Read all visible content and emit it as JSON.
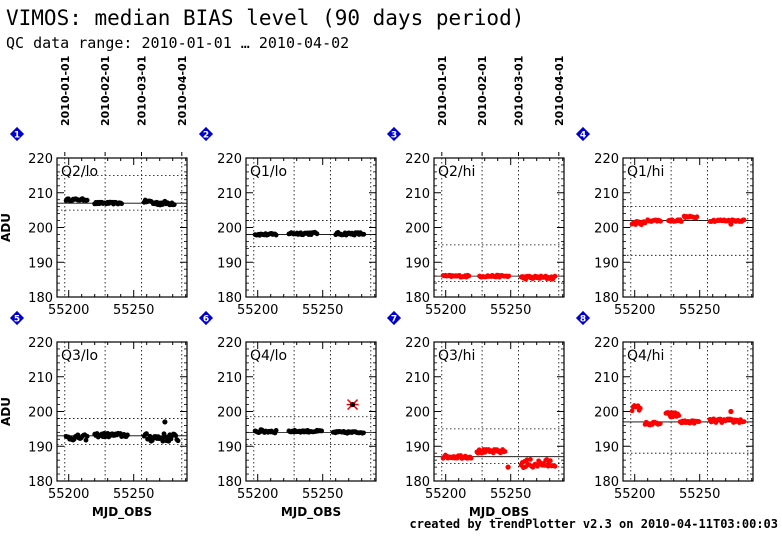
{
  "title": "VIMOS: median BIAS level (90 days period)",
  "subtitle": "QC data range: 2010-01-01 … 2010-04-02",
  "footer": "created by trendPlotter v2.3 on 2010-04-11T03:00:03",
  "colors": {
    "black_series": "#000000",
    "red_series": "#ff0000",
    "badge": "#0000cc"
  },
  "date_ticks": [
    "2010-01-01",
    "2010-02-01",
    "2010-03-01",
    "2010-04-01"
  ],
  "chart_data": [
    {
      "type": "scatter",
      "badge": "1",
      "label": "Q2/lo",
      "color": "black",
      "xlim": [
        55191,
        55291
      ],
      "ylim": [
        180,
        220
      ],
      "yticks": [
        180,
        190,
        200,
        210,
        220
      ],
      "xticks": [
        55200,
        55250
      ],
      "ylabel": "ADU",
      "xlabel": "",
      "show_xticklabels": true,
      "show_dates": true,
      "median": 207,
      "hlines": [
        205,
        215
      ],
      "clusters": [
        {
          "x0": 55198,
          "x1": 55215,
          "y": 208,
          "spread": 0.3
        },
        {
          "x0": 55220,
          "x1": 55241,
          "y": 207,
          "spread": 0.3
        },
        {
          "x0": 55258,
          "x1": 55264,
          "y": 207.5,
          "spread": 0.4
        },
        {
          "x0": 55265,
          "x1": 55282,
          "y": 207,
          "spread": 0.6
        }
      ],
      "outliers": []
    },
    {
      "type": "scatter",
      "badge": "2",
      "label": "Q1/lo",
      "color": "black",
      "xlim": [
        55191,
        55291
      ],
      "ylim": [
        180,
        220
      ],
      "yticks": [
        180,
        190,
        200,
        210,
        220
      ],
      "xticks": [
        55200,
        55250
      ],
      "ylabel": "",
      "xlabel": "",
      "show_xticklabels": true,
      "show_dates": false,
      "median": 198,
      "hlines": [
        194.5,
        202
      ],
      "clusters": [
        {
          "x0": 55198,
          "x1": 55215,
          "y": 198,
          "spread": 0.3
        },
        {
          "x0": 55224,
          "x1": 55246,
          "y": 198.3,
          "spread": 0.4
        },
        {
          "x0": 55260,
          "x1": 55282,
          "y": 198.2,
          "spread": 0.4
        }
      ],
      "outliers": []
    },
    {
      "type": "scatter",
      "badge": "3",
      "label": "Q2/hi",
      "color": "red",
      "xlim": [
        55191,
        55291
      ],
      "ylim": [
        180,
        220
      ],
      "yticks": [
        180,
        190,
        200,
        210,
        220
      ],
      "xticks": [
        55200,
        55250
      ],
      "ylabel": "",
      "xlabel": "",
      "show_xticklabels": true,
      "show_dates": true,
      "median": 186,
      "hlines": [
        184.5,
        195
      ],
      "clusters": [
        {
          "x0": 55198,
          "x1": 55218,
          "y": 186,
          "spread": 0.3
        },
        {
          "x0": 55226,
          "x1": 55249,
          "y": 186,
          "spread": 0.3
        },
        {
          "x0": 55258,
          "x1": 55285,
          "y": 185.6,
          "spread": 0.5
        }
      ],
      "outliers": []
    },
    {
      "type": "scatter",
      "badge": "4",
      "label": "Q1/hi",
      "color": "red",
      "xlim": [
        55191,
        55291
      ],
      "ylim": [
        180,
        220
      ],
      "yticks": [
        180,
        190,
        200,
        210,
        220
      ],
      "xticks": [
        55200,
        55250
      ],
      "ylabel": "",
      "xlabel": "",
      "show_xticklabels": true,
      "show_dates": false,
      "median": 202,
      "hlines": [
        192,
        206
      ],
      "clusters": [
        {
          "x0": 55198,
          "x1": 55208,
          "y": 201.3,
          "spread": 0.5
        },
        {
          "x0": 55210,
          "x1": 55220,
          "y": 202,
          "spread": 0.3
        },
        {
          "x0": 55226,
          "x1": 55236,
          "y": 202,
          "spread": 0.3
        },
        {
          "x0": 55238,
          "x1": 55248,
          "y": 203,
          "spread": 0.3
        },
        {
          "x0": 55258,
          "x1": 55285,
          "y": 202,
          "spread": 0.3
        }
      ],
      "outliers": [
        {
          "x": 55274,
          "y": 201
        }
      ]
    },
    {
      "type": "scatter",
      "badge": "5",
      "label": "Q3/lo",
      "color": "black",
      "xlim": [
        55191,
        55291
      ],
      "ylim": [
        180,
        220
      ],
      "yticks": [
        180,
        190,
        200,
        210,
        220
      ],
      "xticks": [
        55200,
        55250
      ],
      "ylabel": "ADU",
      "xlabel": "MJD_OBS",
      "show_xticklabels": true,
      "show_dates": false,
      "median": 193,
      "hlines": [
        190.5,
        198
      ],
      "clusters": [
        {
          "x0": 55198,
          "x1": 55215,
          "y": 192.5,
          "spread": 0.8
        },
        {
          "x0": 55220,
          "x1": 55246,
          "y": 193.2,
          "spread": 0.6
        },
        {
          "x0": 55258,
          "x1": 55285,
          "y": 192.5,
          "spread": 1.2
        }
      ],
      "outliers": [
        {
          "x": 55274,
          "y": 197
        }
      ]
    },
    {
      "type": "scatter",
      "badge": "6",
      "label": "Q4/lo",
      "color": "black",
      "xlim": [
        55191,
        55291
      ],
      "ylim": [
        180,
        220
      ],
      "yticks": [
        180,
        190,
        200,
        210,
        220
      ],
      "xticks": [
        55200,
        55250
      ],
      "ylabel": "",
      "xlabel": "MJD_OBS",
      "show_xticklabels": true,
      "show_dates": false,
      "median": 194,
      "hlines": [
        190.5,
        198.5
      ],
      "clusters": [
        {
          "x0": 55198,
          "x1": 55215,
          "y": 194.3,
          "spread": 0.5
        },
        {
          "x0": 55224,
          "x1": 55250,
          "y": 194.3,
          "spread": 0.3
        },
        {
          "x0": 55258,
          "x1": 55282,
          "y": 194,
          "spread": 0.3
        }
      ],
      "outliers": [
        {
          "x": 55273,
          "y": 202,
          "star": true
        }
      ]
    },
    {
      "type": "scatter",
      "badge": "7",
      "label": "Q3/hi",
      "color": "red",
      "xlim": [
        55191,
        55291
      ],
      "ylim": [
        180,
        220
      ],
      "yticks": [
        180,
        190,
        200,
        210,
        220
      ],
      "xticks": [
        55200,
        55250
      ],
      "ylabel": "",
      "xlabel": "MJD_OBS",
      "show_xticklabels": true,
      "show_dates": false,
      "median": 187,
      "hlines": [
        185,
        195
      ],
      "clusters": [
        {
          "x0": 55198,
          "x1": 55220,
          "y": 187,
          "spread": 0.5
        },
        {
          "x0": 55224,
          "x1": 55246,
          "y": 188.5,
          "spread": 0.6
        },
        {
          "x0": 55258,
          "x1": 55285,
          "y": 185,
          "spread": 1.3
        }
      ],
      "outliers": [
        {
          "x": 55248,
          "y": 184
        }
      ]
    },
    {
      "type": "scatter",
      "badge": "8",
      "label": "Q4/hi",
      "color": "red",
      "xlim": [
        55191,
        55291
      ],
      "ylim": [
        180,
        220
      ],
      "yticks": [
        180,
        190,
        200,
        210,
        220
      ],
      "xticks": [
        55200,
        55250
      ],
      "ylabel": "",
      "xlabel": "",
      "show_xticklabels": true,
      "show_dates": false,
      "median": 197,
      "hlines": [
        188,
        206
      ],
      "clusters": [
        {
          "x0": 55198,
          "x1": 55205,
          "y": 201,
          "spread": 0.8
        },
        {
          "x0": 55208,
          "x1": 55220,
          "y": 196.5,
          "spread": 0.5
        },
        {
          "x0": 55224,
          "x1": 55234,
          "y": 199,
          "spread": 0.8
        },
        {
          "x0": 55235,
          "x1": 55250,
          "y": 197,
          "spread": 0.4
        },
        {
          "x0": 55258,
          "x1": 55285,
          "y": 197.3,
          "spread": 0.6
        }
      ],
      "outliers": [
        {
          "x": 55274,
          "y": 200
        }
      ]
    }
  ]
}
